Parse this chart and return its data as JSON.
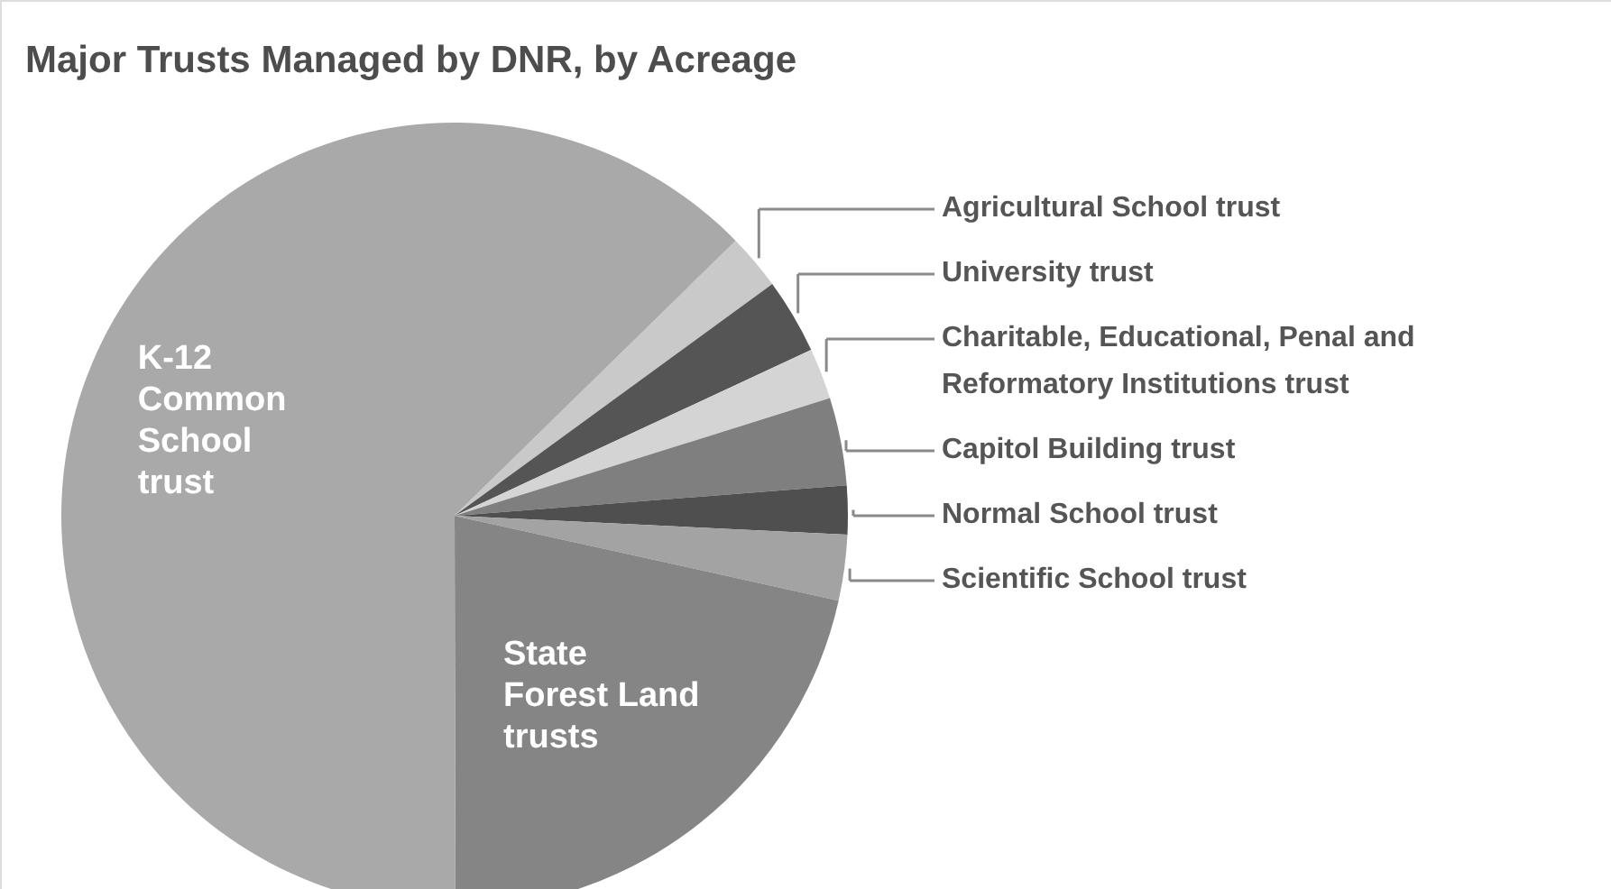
{
  "chart_data": {
    "type": "pie",
    "title": "Major Trusts Managed by DNR, by Acreage",
    "categories": [
      "Agricultural School trust",
      "University trust",
      "Charitable, Educational, Penal and\nReformatory Institutions trust",
      "Capitol Building trust",
      "Normal School trust",
      "Scientific School trust",
      "State\nForest Land\ntrusts",
      "K-12\nCommon\nSchool\ntrust"
    ],
    "values": [
      2.3,
      3.1,
      2.1,
      3.6,
      2.0,
      2.7,
      21.5,
      62.7
    ],
    "colors": [
      "#c9c9c9",
      "#555555",
      "#d4d4d4",
      "#7f7f7f",
      "#4f4f4f",
      "#a3a3a3",
      "#858585",
      "#a9a9a9"
    ]
  }
}
